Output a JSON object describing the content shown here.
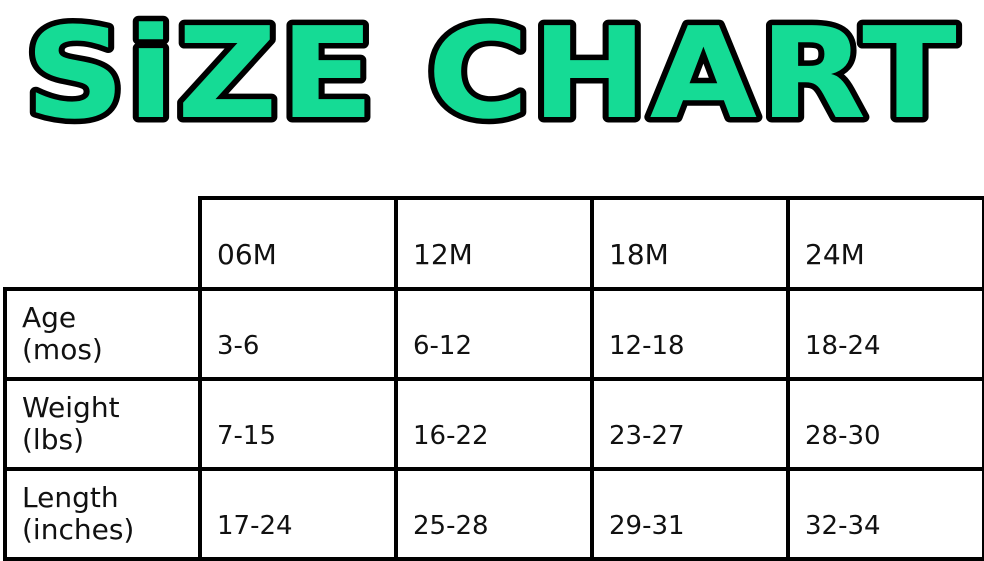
{
  "title": "SiZE CHART",
  "colors": {
    "title_fill": "#15DB95",
    "title_outline": "#000000",
    "table_border": "#000000",
    "text": "#111111",
    "background": "#ffffff"
  },
  "chart_data": {
    "type": "table",
    "title": "SIZE CHART",
    "columns": [
      "",
      "06M",
      "12M",
      "18M",
      "24M"
    ],
    "rows": [
      {
        "label": "Age (mos)",
        "values": [
          "3-6",
          "6-12",
          "12-18",
          "18-24"
        ]
      },
      {
        "label": "Weight (lbs)",
        "values": [
          "7-15",
          "16-22",
          "23-27",
          "28-30"
        ]
      },
      {
        "label": "Length (inches)",
        "values": [
          "17-24",
          "25-28",
          "29-31",
          "32-34"
        ]
      }
    ]
  },
  "table": {
    "headers": [
      "06M",
      "12M",
      "18M",
      "24M"
    ],
    "rows": [
      {
        "label_line1": "Age",
        "label_line2": "(mos)",
        "values": [
          "3-6",
          "6-12",
          "12-18",
          "18-24"
        ]
      },
      {
        "label_line1": "Weight",
        "label_line2": "(lbs)",
        "values": [
          "7-15",
          "16-22",
          "23-27",
          "28-30"
        ]
      },
      {
        "label_line1": "Length",
        "label_line2": "(inches)",
        "values": [
          "17-24",
          "25-28",
          "29-31",
          "32-34"
        ]
      }
    ]
  }
}
